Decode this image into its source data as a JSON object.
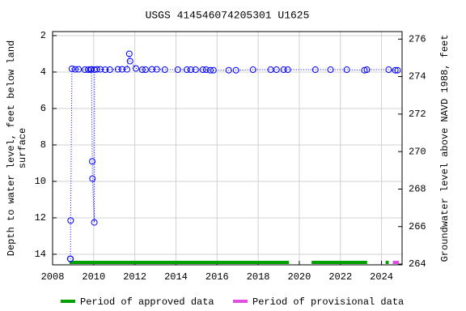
{
  "chart_data": {
    "type": "line",
    "title": "USGS 414546074205301 U1625",
    "ylabel": [
      "Depth to water level, feet below land",
      "surface"
    ],
    "y2label": "Groundwater level above NAVD 1988, feet",
    "xlim": [
      2008,
      2025
    ],
    "xticks": [
      2008,
      2010,
      2012,
      2014,
      2016,
      2018,
      2020,
      2022,
      2024
    ],
    "ylim": [
      1.78,
      14.58
    ],
    "y_inverted": true,
    "yticks": [
      2,
      4,
      6,
      8,
      10,
      12,
      14
    ],
    "y2lim": [
      263.96,
      276.4
    ],
    "y2ticks": [
      264,
      266,
      268,
      270,
      272,
      274,
      276
    ],
    "grid": true,
    "series": [
      {
        "color": "#0000ff",
        "x": [
          2008.86,
          2008.87,
          2008.88,
          2008.94,
          2009.1,
          2009.26,
          2009.57,
          2009.73,
          2009.85,
          2009.89,
          2009.93,
          2009.94,
          2010.03,
          2010.04,
          2010.16,
          2010.32,
          2010.56,
          2010.79,
          2011.18,
          2011.38,
          2011.62,
          2011.73,
          2011.77,
          2012.05,
          2012.36,
          2012.52,
          2012.83,
          2013.07,
          2013.46,
          2014.09,
          2014.53,
          2014.72,
          2014.96,
          2015.31,
          2015.47,
          2015.67,
          2015.82,
          2016.57,
          2016.92,
          2017.75,
          2018.61,
          2018.89,
          2019.24,
          2019.44,
          2020.78,
          2021.52,
          2022.31,
          2023.17,
          2023.29,
          2024.35,
          2024.67,
          2024.78
        ],
        "values": [
          14.25,
          14.25,
          12.15,
          3.82,
          3.85,
          3.85,
          3.87,
          3.87,
          3.87,
          3.85,
          8.9,
          9.85,
          12.25,
          3.87,
          3.85,
          3.85,
          3.87,
          3.87,
          3.85,
          3.85,
          3.85,
          3.0,
          3.4,
          3.8,
          3.87,
          3.87,
          3.85,
          3.85,
          3.87,
          3.87,
          3.87,
          3.87,
          3.87,
          3.87,
          3.87,
          3.9,
          3.9,
          3.9,
          3.9,
          3.87,
          3.87,
          3.87,
          3.87,
          3.87,
          3.87,
          3.87,
          3.87,
          3.9,
          3.87,
          3.87,
          3.9,
          3.9
        ]
      }
    ],
    "periods": [
      {
        "name": "Period of approved data",
        "color": "#00a000",
        "ranges": [
          [
            2008.82,
            2019.5
          ],
          [
            2020.6,
            2023.3
          ],
          [
            2024.2,
            2024.35
          ]
        ]
      },
      {
        "name": "Period of provisional data",
        "color": "#e050e0",
        "ranges": [
          [
            2024.55,
            2024.85
          ]
        ]
      }
    ]
  }
}
